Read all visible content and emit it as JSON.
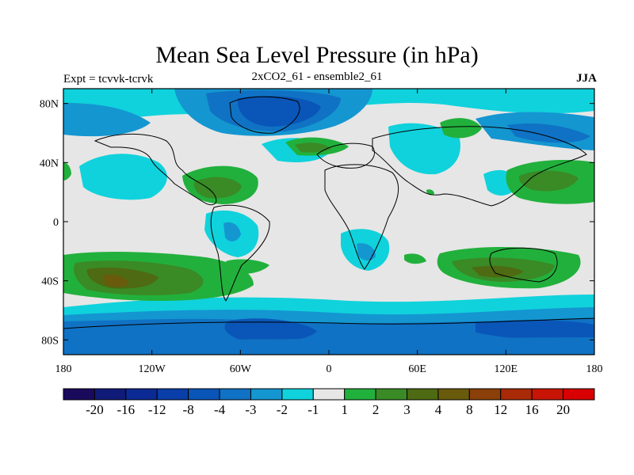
{
  "title": "Mean Sea Level Pressure (in hPa)",
  "subtitle_left": "Expt = tcvvk-tcrvk",
  "subtitle_center": "2xCO2_61 - ensemble2_61",
  "subtitle_right": "JJA",
  "map": {
    "lon_range": [
      -180,
      180
    ],
    "lat_range": [
      -90,
      90
    ],
    "x_ticks": [
      {
        "value": -180,
        "label": "180"
      },
      {
        "value": -120,
        "label": "120W"
      },
      {
        "value": -60,
        "label": "60W"
      },
      {
        "value": 0,
        "label": "0"
      },
      {
        "value": 60,
        "label": "60E"
      },
      {
        "value": 120,
        "label": "120E"
      },
      {
        "value": 180,
        "label": "180"
      }
    ],
    "y_ticks": [
      {
        "value": 80,
        "label": "80N"
      },
      {
        "value": 40,
        "label": "40N"
      },
      {
        "value": 0,
        "label": "0"
      },
      {
        "value": -40,
        "label": "40S"
      },
      {
        "value": -80,
        "label": "80S"
      }
    ],
    "background_color": "#e6e6e6"
  },
  "colorbar": {
    "labels": [
      "-20",
      "-16",
      "-12",
      "-8",
      "-4",
      "-3",
      "-2",
      "-1",
      "1",
      "2",
      "3",
      "4",
      "8",
      "12",
      "16",
      "20"
    ],
    "colors": [
      "#1a0a5c",
      "#101a78",
      "#0c2a94",
      "#0a3ea8",
      "#0a56b8",
      "#1072c4",
      "#1496d0",
      "#10d2dc",
      "#e6e6e6",
      "#22b03c",
      "#3a8a26",
      "#4e6a12",
      "#6a5a0c",
      "#8a4008",
      "#a82a06",
      "#c81404",
      "#d80000"
    ]
  }
}
